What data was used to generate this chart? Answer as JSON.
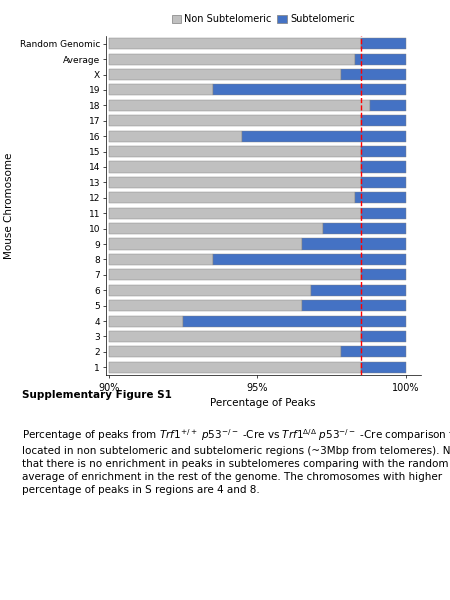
{
  "categories": [
    "1",
    "2",
    "3",
    "4",
    "5",
    "6",
    "7",
    "8",
    "9",
    "10",
    "11",
    "12",
    "13",
    "14",
    "15",
    "16",
    "17",
    "18",
    "19",
    "X",
    "Average",
    "Random Genomic"
  ],
  "non_sub": [
    98.5,
    97.8,
    98.5,
    92.5,
    96.5,
    96.8,
    98.5,
    93.5,
    96.5,
    97.2,
    98.5,
    98.3,
    98.5,
    98.5,
    98.5,
    94.5,
    98.5,
    98.8,
    93.5,
    97.8,
    98.3,
    98.5
  ],
  "sub": [
    1.5,
    2.2,
    1.5,
    7.5,
    3.5,
    3.2,
    1.5,
    6.5,
    3.5,
    2.8,
    1.5,
    1.7,
    1.5,
    1.5,
    1.5,
    5.5,
    1.5,
    1.2,
    6.5,
    2.2,
    1.7,
    1.5
  ],
  "xlim_left": 90,
  "xlim_right": 100.5,
  "red_line_x": 98.5,
  "bar_color_non_sub": "#c0c0c0",
  "bar_color_sub": "#4472c4",
  "bar_edge_color": "#808080",
  "xlabel": "Percentage of Peaks",
  "ylabel": "Mouse Chromosome",
  "legend_non_sub": "Non Subtelomeric",
  "legend_sub": "Subtelomeric",
  "bar_height": 0.72,
  "background_color": "#ffffff",
  "xticks": [
    90,
    95,
    100
  ],
  "xtick_labels": [
    "90%",
    "95%",
    "100%"
  ]
}
